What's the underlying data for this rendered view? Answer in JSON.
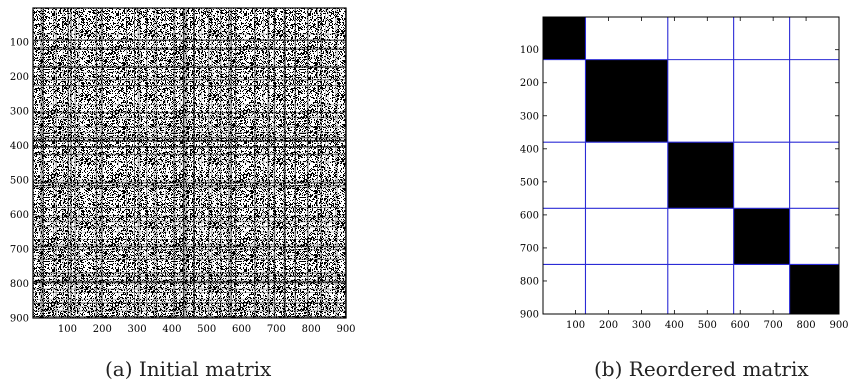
{
  "chart_data": [
    {
      "type": "heatmap",
      "caption": "(a) Initial matrix",
      "xlim": [
        1,
        900
      ],
      "ylim": [
        1,
        900
      ],
      "x_ticks": [
        100,
        200,
        300,
        400,
        500,
        600,
        700,
        800,
        900
      ],
      "y_ticks": [
        100,
        200,
        300,
        400,
        500,
        600,
        700,
        800,
        900
      ],
      "y_inverted": true,
      "pattern": "dense random sparse binary pattern",
      "colors": {
        "fill": "#000000",
        "background": "#ffffff"
      }
    },
    {
      "type": "heatmap",
      "caption": "(b) Reordered matrix",
      "xlim": [
        1,
        900
      ],
      "ylim": [
        1,
        900
      ],
      "x_ticks": [
        100,
        200,
        300,
        400,
        500,
        600,
        700,
        800,
        900
      ],
      "y_ticks": [
        100,
        200,
        300,
        400,
        500,
        600,
        700,
        800,
        900
      ],
      "y_inverted": true,
      "block_boundaries": [
        130,
        380,
        580,
        750
      ],
      "blocks": [
        {
          "start": 1,
          "end": 130
        },
        {
          "start": 130,
          "end": 380
        },
        {
          "start": 380,
          "end": 580
        },
        {
          "start": 580,
          "end": 750
        },
        {
          "start": 750,
          "end": 900
        }
      ],
      "colors": {
        "block": "#000000",
        "divider": "#2b2bd6",
        "background": "#ffffff"
      }
    }
  ]
}
